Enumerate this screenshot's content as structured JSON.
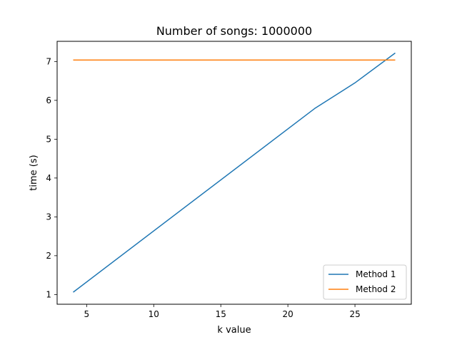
{
  "chart_data": {
    "type": "line",
    "title": "Number of songs: 1000000",
    "xlabel": "k value",
    "ylabel": "time (s)",
    "xlim": [
      2.8,
      29.2
    ],
    "ylim": [
      0.75,
      7.52
    ],
    "xticks": [
      5,
      10,
      15,
      20,
      25
    ],
    "yticks": [
      1,
      2,
      3,
      4,
      5,
      6,
      7
    ],
    "grid": false,
    "legend_position": "lower-right",
    "x": [
      4,
      22,
      25,
      28
    ],
    "series": [
      {
        "name": "Method 1",
        "color": "#1f77b4",
        "values": [
          1.06,
          5.79,
          6.45,
          7.22
        ]
      },
      {
        "name": "Method 2",
        "color": "#ff7f0e",
        "values": [
          7.04,
          7.04,
          7.04,
          7.04
        ]
      }
    ]
  }
}
